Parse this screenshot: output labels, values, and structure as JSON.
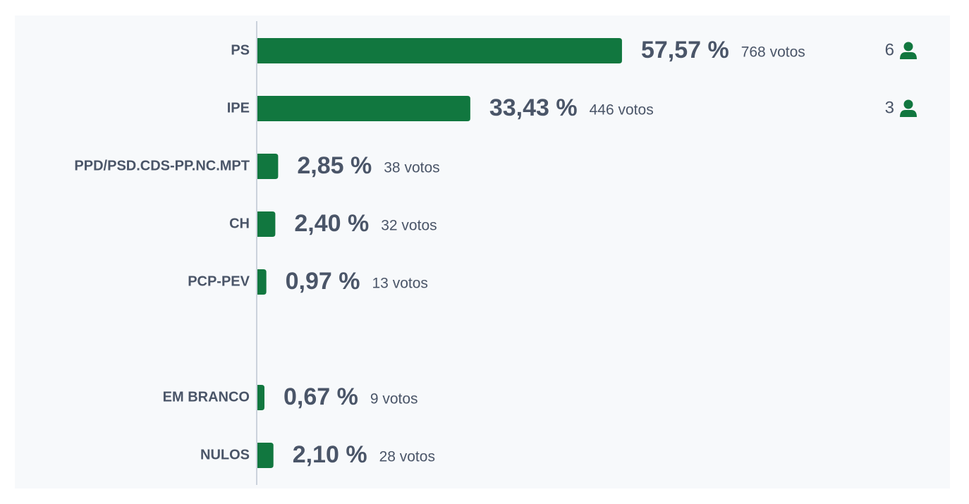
{
  "chart_data": {
    "type": "bar",
    "orientation": "horizontal",
    "categories": [
      "PS",
      "IPE",
      "PPD/PSD.CDS-PP.NC.MPT",
      "CH",
      "PCP-PEV",
      null,
      "EM BRANCO",
      "NULOS"
    ],
    "values": [
      57.57,
      33.43,
      2.85,
      2.4,
      0.97,
      null,
      0.67,
      2.1
    ],
    "value_labels": [
      "57,57 %",
      "33,43 %",
      "2,85 %",
      "2,40 %",
      "0,97 %",
      null,
      "0,67 %",
      "2,10 %"
    ],
    "vote_labels": [
      "768 votos",
      "446 votos",
      "38 votos",
      "32 votos",
      "13 votos",
      null,
      "9 votos",
      "28 votos"
    ],
    "seats": [
      6,
      3,
      null,
      null,
      null,
      null,
      null,
      null
    ],
    "color": "#11773f",
    "xlim": [
      0,
      100
    ]
  }
}
